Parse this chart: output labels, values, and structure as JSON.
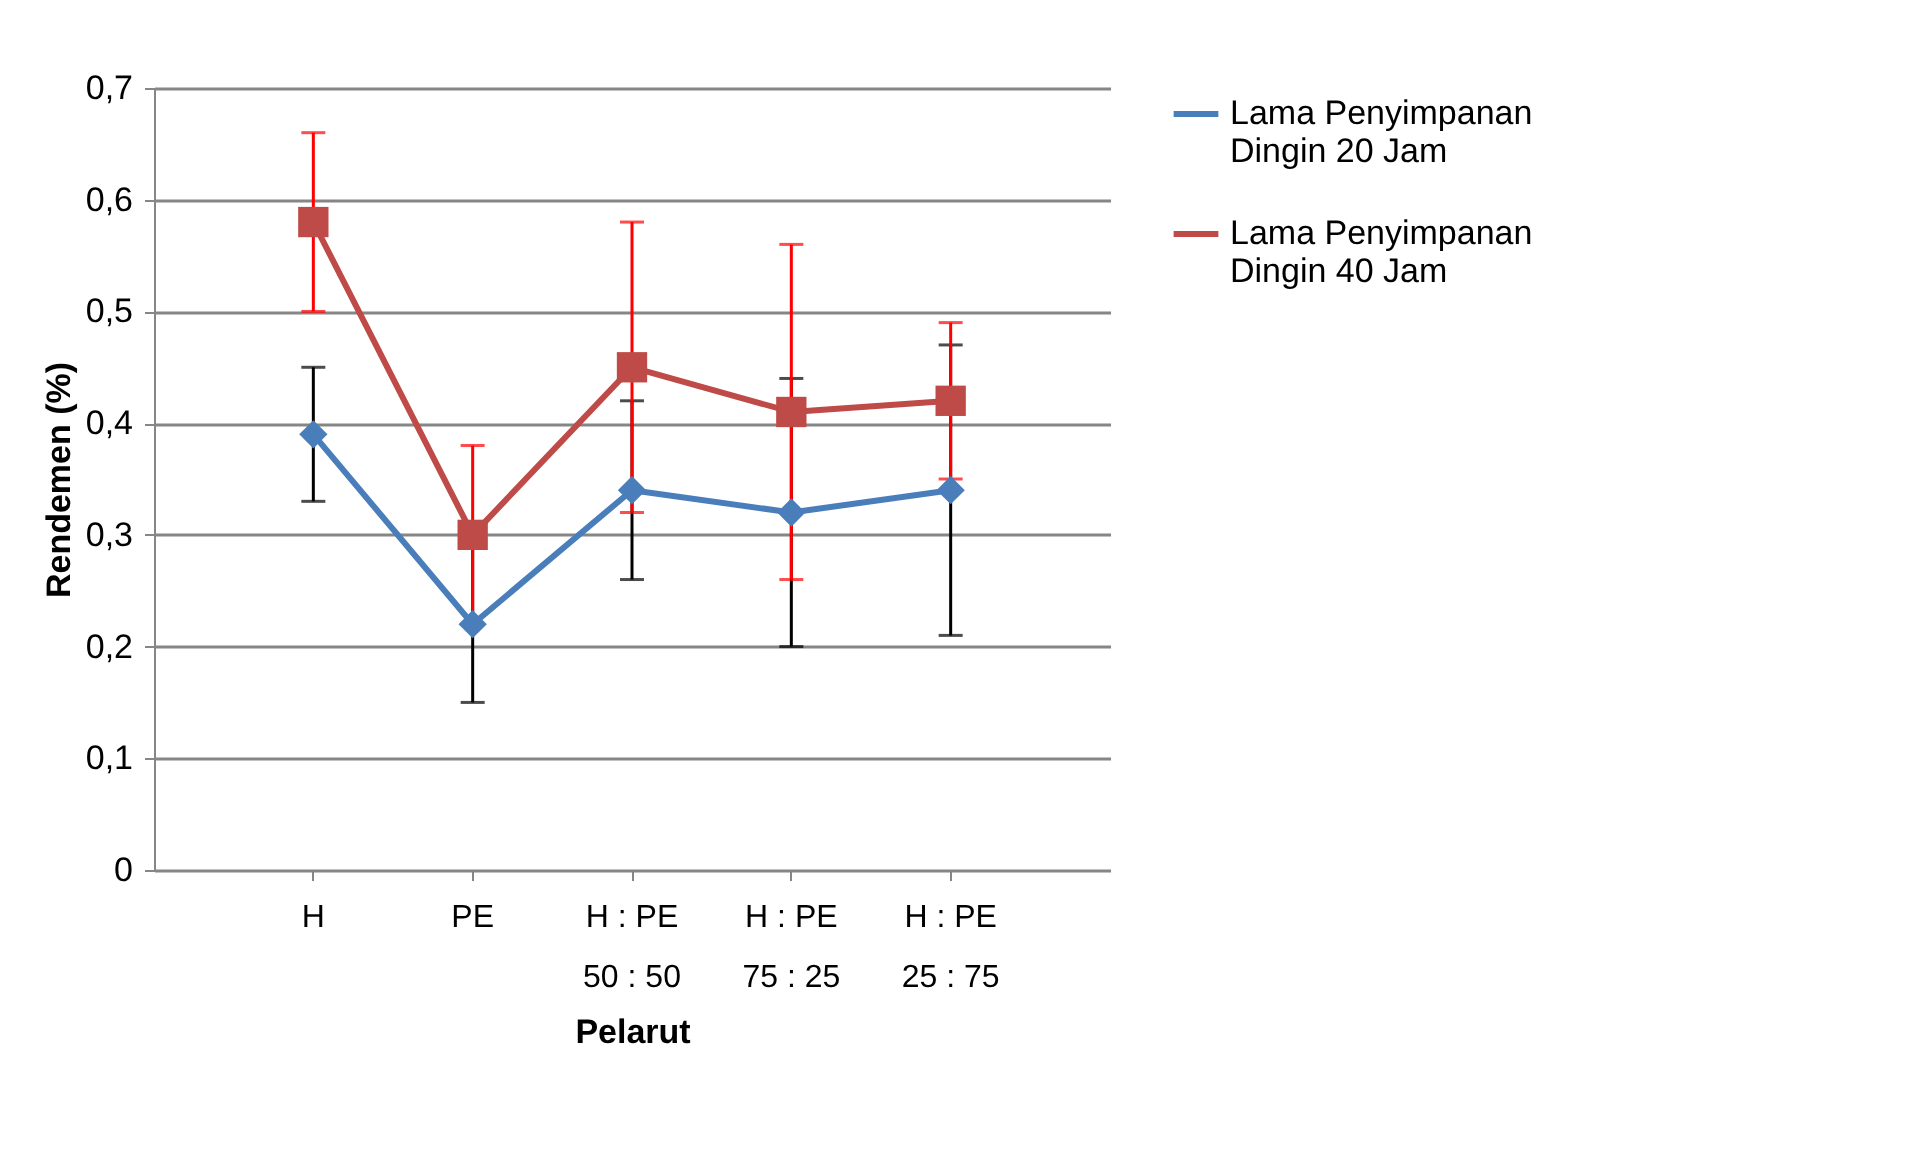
{
  "chart_data": {
    "type": "line",
    "xlabel": "Pelarut",
    "ylabel": "Rendemen (%)",
    "categories": [
      "H",
      "PE",
      "H : PE 50 : 50",
      "H : PE 75 : 25",
      "H : PE 25 : 75"
    ],
    "ylim": [
      0,
      0.7
    ],
    "yticks": [
      {
        "value": 0,
        "label": "0"
      },
      {
        "value": 0.1,
        "label": "0,1"
      },
      {
        "value": 0.2,
        "label": "0,2"
      },
      {
        "value": 0.3,
        "label": "0,3"
      },
      {
        "value": 0.4,
        "label": "0,4"
      },
      {
        "value": 0.5,
        "label": "0,5"
      },
      {
        "value": 0.6,
        "label": "0,6"
      },
      {
        "value": 0.7,
        "label": "0,7"
      }
    ],
    "grid": "y",
    "legend": "right",
    "series": [
      {
        "name": "Lama Penyimpanan Dingin 20 Jam",
        "color": "#4a7ebb",
        "marker": "diamond",
        "values": [
          0.39,
          0.22,
          0.34,
          0.32,
          0.34
        ],
        "errors": [
          0.06,
          0.07,
          0.08,
          0.12,
          0.13
        ]
      },
      {
        "name": "Lama Penyimpanan Dingin 40 Jam",
        "color": "#be4b48",
        "marker": "square",
        "values": [
          0.58,
          0.3,
          0.45,
          0.41,
          0.42
        ],
        "errors": [
          0.08,
          0.08,
          0.13,
          0.15,
          0.07
        ]
      }
    ]
  }
}
